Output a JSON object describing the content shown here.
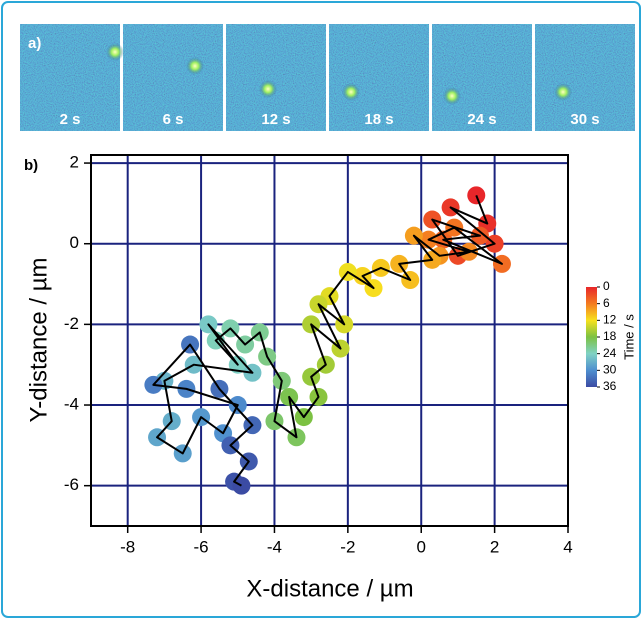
{
  "panel_a": {
    "label": "a)",
    "frames": [
      "2 s",
      "6 s",
      "12 s",
      "18 s",
      "24 s",
      "30 s"
    ]
  },
  "chart_data": {
    "type": "scatter",
    "panel_label": "b)",
    "x_label": "X-distance / µm",
    "y_label": "Y-distance / µm",
    "x": [
      1.5,
      1.8,
      0.8,
      2.0,
      1.0,
      0.3,
      1.6,
      0.6,
      2.2,
      0.9,
      0.2,
      1.3,
      0.5,
      -0.2,
      0.3,
      -0.6,
      -0.3,
      -1.1,
      -1.6,
      -1.3,
      -2.0,
      -2.5,
      -2.1,
      -2.8,
      -2.2,
      -3.0,
      -2.6,
      -3.0,
      -2.8,
      -3.2,
      -3.6,
      -3.4,
      -4.0,
      -3.8,
      -4.2,
      -4.4,
      -4.8,
      -5.2,
      -5.6,
      -5.0,
      -5.8,
      -4.6,
      -6.2,
      -7.0,
      -6.8,
      -7.2,
      -6.5,
      -6.0,
      -5.4,
      -5.0,
      -6.4,
      -7.3,
      -6.3,
      -5.5,
      -4.6,
      -5.2,
      -4.7,
      -5.1,
      -4.9
    ],
    "y": [
      1.2,
      0.5,
      0.9,
      0.0,
      -0.3,
      0.6,
      0.2,
      0.1,
      -0.5,
      0.4,
      0.1,
      -0.2,
      -0.3,
      0.2,
      -0.4,
      -0.5,
      -0.9,
      -0.6,
      -0.8,
      -1.1,
      -0.7,
      -1.3,
      -2.0,
      -1.5,
      -2.6,
      -2.0,
      -3.0,
      -3.3,
      -3.8,
      -4.3,
      -3.8,
      -4.8,
      -4.4,
      -3.4,
      -2.8,
      -2.2,
      -2.5,
      -2.1,
      -2.4,
      -3.0,
      -2.0,
      -3.2,
      -3.0,
      -3.4,
      -4.4,
      -4.8,
      -5.2,
      -4.3,
      -4.7,
      -4.0,
      -3.6,
      -3.5,
      -2.5,
      -3.6,
      -4.5,
      -5.0,
      -5.4,
      -5.9,
      -6.0
    ],
    "line_color": "#000000",
    "xlim": [
      -9,
      4
    ],
    "xticks": [
      -8,
      -6,
      -4,
      -2,
      0,
      2,
      4
    ],
    "ylim": [
      -7,
      2.2
    ],
    "yticks": [
      -6,
      -4,
      -2,
      0,
      2
    ],
    "grid": true,
    "grid_color": "#1a237e",
    "colorbar": {
      "label": "Time / s",
      "lim": [
        0,
        36
      ],
      "ticks": [
        0,
        6,
        12,
        18,
        24,
        30,
        36
      ],
      "colors": [
        "#e8262a",
        "#f47b20",
        "#f7e11e",
        "#7cc142",
        "#80d2c4",
        "#4e8fcf",
        "#3b4ba3"
      ]
    }
  }
}
